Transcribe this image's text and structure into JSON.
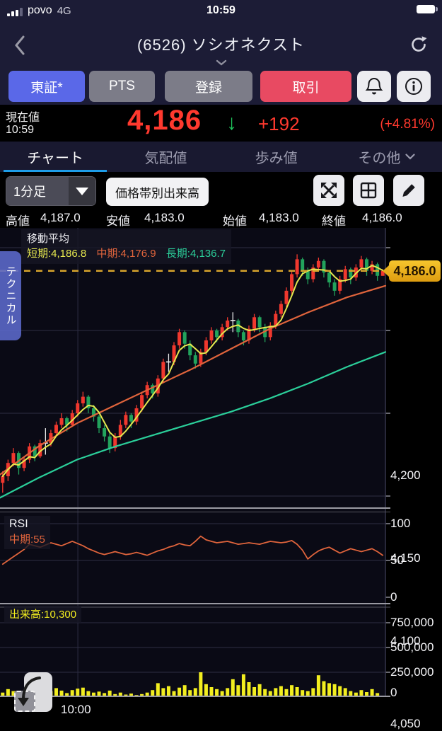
{
  "status_bar": {
    "carrier": "povo",
    "network": "4G",
    "time": "10:59"
  },
  "header": {
    "title": "(6526) ソシオネクスト"
  },
  "toolbar": {
    "exchange": "東証*",
    "pts": "PTS",
    "register": "登録",
    "trade": "取引"
  },
  "price": {
    "label": "現在値",
    "time": "10:59",
    "value": "4,186",
    "tick_arrow": "↓",
    "change": "+192",
    "change_pct": "(+4.81%)"
  },
  "tabs": [
    {
      "label": "チャート"
    },
    {
      "label": "気配値"
    },
    {
      "label": "歩み値"
    },
    {
      "label": "その他"
    }
  ],
  "controls": {
    "interval": "1分足",
    "volume_by_price": "価格帯別出来高"
  },
  "ohlc": {
    "high_label": "高値",
    "high": "4,187.0",
    "low_label": "安値",
    "low": "4,183.0",
    "open_label": "始値",
    "open": "4,183.0",
    "close_label": "終値",
    "close": "4,186.0"
  },
  "side_tab": {
    "label": "テクニカル"
  },
  "chart_data": {
    "type": "candlestick",
    "title": "(6526) ソシオネクスト 1分足",
    "legend": {
      "title": "移動平均",
      "short": "短期:4,186.8",
      "mid": "中期:4,176.9",
      "long": "長期:4,136.7"
    },
    "rsi_legend": {
      "title": "RSI",
      "value": "中期:55"
    },
    "volume_label": "出来高:10,300",
    "current": {
      "value": 4186,
      "label": "4,186.0"
    },
    "axis": {
      "main": [
        "4,200",
        "4,150",
        "4,100",
        "4,050"
      ],
      "main_values": [
        4200,
        4150,
        4100,
        4050
      ],
      "rsi": [
        "100",
        "50",
        "0"
      ],
      "rsi_values": [
        100,
        50,
        0
      ],
      "volume": [
        "750,000",
        "500,000",
        "250,000",
        "0"
      ],
      "volume_values": [
        750000,
        500000,
        250000,
        0
      ],
      "time": "10:00",
      "time_x_frac": 0.202,
      "main_ylim": [
        4044,
        4212
      ],
      "rsi_ylim": [
        0,
        100
      ],
      "volume_ylim": [
        0,
        900000
      ]
    },
    "candles": [
      [
        4058,
        4065,
        4052,
        4062
      ],
      [
        4062,
        4072,
        4059,
        4070
      ],
      [
        4070,
        4079,
        4068,
        4076
      ],
      [
        4076,
        4077,
        4063,
        4067
      ],
      [
        4067,
        4074,
        4065,
        4072
      ],
      [
        4072,
        4082,
        4070,
        4080
      ],
      [
        4080,
        4081,
        4071,
        4074
      ],
      [
        4074,
        4084,
        4073,
        4082
      ],
      [
        4082,
        4091,
        4075,
        4082
      ],
      [
        4082,
        4090,
        4080,
        4088
      ],
      [
        4088,
        4095,
        4086,
        4093
      ],
      [
        4093,
        4100,
        4091,
        4097
      ],
      [
        4097,
        4098,
        4089,
        4093
      ],
      [
        4093,
        4102,
        4092,
        4100
      ],
      [
        4100,
        4108,
        4098,
        4106
      ],
      [
        4106,
        4113,
        4104,
        4110
      ],
      [
        4110,
        4111,
        4100,
        4103
      ],
      [
        4103,
        4105,
        4095,
        4098
      ],
      [
        4098,
        4099,
        4088,
        4091
      ],
      [
        4091,
        4093,
        4083,
        4086
      ],
      [
        4086,
        4088,
        4076,
        4079
      ],
      [
        4079,
        4088,
        4077,
        4086
      ],
      [
        4086,
        4096,
        4084,
        4093
      ],
      [
        4093,
        4101,
        4091,
        4099
      ],
      [
        4099,
        4100,
        4091,
        4095
      ],
      [
        4095,
        4105,
        4093,
        4103
      ],
      [
        4103,
        4113,
        4101,
        4111
      ],
      [
        4111,
        4119,
        4109,
        4117
      ],
      [
        4117,
        4118,
        4109,
        4112
      ],
      [
        4112,
        4123,
        4110,
        4121
      ],
      [
        4121,
        4133,
        4119,
        4131
      ],
      [
        4131,
        4136,
        4125,
        4131
      ],
      [
        4131,
        4143,
        4129,
        4141
      ],
      [
        4141,
        4151,
        4139,
        4149
      ],
      [
        4149,
        4150,
        4139,
        4142
      ],
      [
        4142,
        4144,
        4132,
        4135
      ],
      [
        4135,
        4137,
        4127,
        4130
      ],
      [
        4130,
        4139,
        4128,
        4137
      ],
      [
        4137,
        4146,
        4135,
        4144
      ],
      [
        4144,
        4152,
        4142,
        4150
      ],
      [
        4150,
        4151,
        4143,
        4146
      ],
      [
        4146,
        4154,
        4144,
        4152
      ],
      [
        4152,
        4158,
        4150,
        4156
      ],
      [
        4156,
        4161,
        4149,
        4156
      ],
      [
        4156,
        4157,
        4146,
        4149
      ],
      [
        4149,
        4150,
        4141,
        4144
      ],
      [
        4144,
        4153,
        4142,
        4151
      ],
      [
        4151,
        4160,
        4149,
        4158
      ],
      [
        4158,
        4159,
        4149,
        4152
      ],
      [
        4152,
        4154,
        4143,
        4146
      ],
      [
        4146,
        4155,
        4144,
        4153
      ],
      [
        4153,
        4162,
        4151,
        4160
      ],
      [
        4160,
        4168,
        4158,
        4166
      ],
      [
        4166,
        4176,
        4164,
        4174
      ],
      [
        4174,
        4186,
        4172,
        4184
      ],
      [
        4184,
        4196,
        4182,
        4193
      ],
      [
        4193,
        4194,
        4183,
        4186
      ],
      [
        4186,
        4188,
        4178,
        4181
      ],
      [
        4181,
        4190,
        4179,
        4188
      ],
      [
        4188,
        4194,
        4186,
        4192
      ],
      [
        4192,
        4193,
        4182,
        4185
      ],
      [
        4185,
        4186,
        4176,
        4179
      ],
      [
        4179,
        4181,
        4171,
        4174
      ],
      [
        4174,
        4183,
        4172,
        4181
      ],
      [
        4181,
        4189,
        4179,
        4187
      ],
      [
        4187,
        4188,
        4178,
        4182
      ],
      [
        4182,
        4190,
        4180,
        4188
      ],
      [
        4188,
        4195,
        4186,
        4193
      ],
      [
        4193,
        4194,
        4183,
        4186
      ],
      [
        4186,
        4192,
        4184,
        4190
      ],
      [
        4190,
        4191,
        4180,
        4183
      ],
      [
        4183,
        4187,
        4183,
        4186
      ]
    ],
    "ma_mid_points": [
      [
        0,
        4063
      ],
      [
        0.1,
        4080
      ],
      [
        0.2,
        4094
      ],
      [
        0.3,
        4105
      ],
      [
        0.4,
        4116
      ],
      [
        0.5,
        4127
      ],
      [
        0.6,
        4139
      ],
      [
        0.7,
        4151
      ],
      [
        0.8,
        4161
      ],
      [
        0.9,
        4170
      ],
      [
        1,
        4177
      ]
    ],
    "ma_long_points": [
      [
        0,
        4049
      ],
      [
        0.1,
        4061
      ],
      [
        0.2,
        4072
      ],
      [
        0.3,
        4080
      ],
      [
        0.4,
        4087
      ],
      [
        0.5,
        4094
      ],
      [
        0.6,
        4101
      ],
      [
        0.7,
        4109
      ],
      [
        0.8,
        4118
      ],
      [
        0.9,
        4128
      ],
      [
        1,
        4137
      ]
    ],
    "rsi_values": [
      45,
      50,
      55,
      60,
      65,
      72,
      70,
      68,
      71,
      74,
      72,
      70,
      73,
      76,
      73,
      70,
      66,
      63,
      60,
      58,
      60,
      62,
      60,
      58,
      59,
      61,
      59,
      57,
      60,
      63,
      65,
      68,
      70,
      73,
      71,
      70,
      76,
      83,
      78,
      76,
      74,
      75,
      76,
      74,
      72,
      73,
      74,
      73,
      72,
      74,
      76,
      75,
      74,
      75,
      77,
      72,
      64,
      52,
      58,
      63,
      66,
      68,
      64,
      60,
      63,
      66,
      64,
      62,
      64,
      66,
      62,
      57
    ],
    "volume_values": [
      45000,
      80000,
      60000,
      30000,
      55000,
      70000,
      40000,
      35000,
      25000,
      60000,
      90000,
      65000,
      40000,
      70000,
      85000,
      95000,
      60000,
      45000,
      55000,
      40000,
      65000,
      30000,
      45000,
      25000,
      35000,
      20000,
      30000,
      45000,
      70000,
      140000,
      90000,
      110000,
      60000,
      95000,
      120000,
      70000,
      90000,
      250000,
      130000,
      100000,
      80000,
      60000,
      90000,
      180000,
      120000,
      230000,
      150000,
      100000,
      130000,
      80000,
      60000,
      90000,
      110000,
      80000,
      120000,
      100000,
      70000,
      60000,
      90000,
      220000,
      160000,
      140000,
      130000,
      110000,
      90000,
      60000,
      45000,
      70000,
      50000,
      80000,
      40000,
      10300
    ],
    "colors": {
      "up": "#f0382e",
      "down": "#22a35c",
      "doji": "#e9e9e9",
      "ma_short": "#e6e84f",
      "ma_mid": "#e0643c",
      "ma_long": "#2bcf9a",
      "rsi": "#e0643c",
      "volume": "#f2ee1f",
      "current_line": "#d6a32c",
      "badge": "#eab31c",
      "grid": "#2e2e44",
      "plot_bg": "#0a0a15",
      "separator": "#9a9aa2",
      "accent_blue": "#5a68e8",
      "trade_red": "#e84a62",
      "tab_underline": "#1e9de8",
      "price_red": "#ff392e",
      "arrow_green": "#1fc15a"
    }
  }
}
